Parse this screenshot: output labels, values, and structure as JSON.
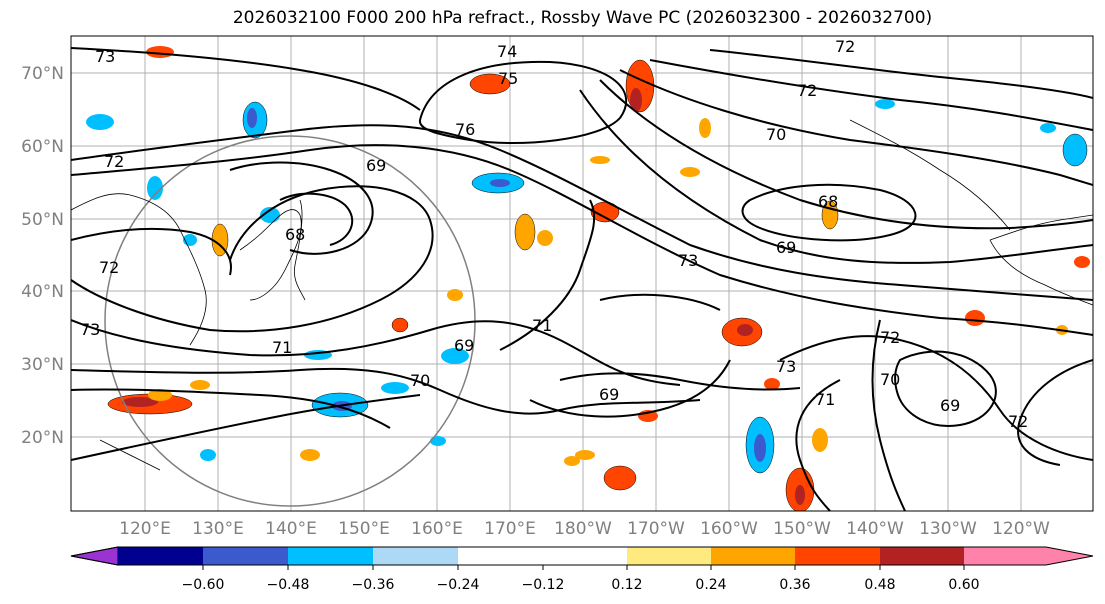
{
  "title": "2026032100 F000 200 hPa refract., Rossby Wave PC (2026032300 - 2026032700)",
  "map": {
    "lat_labels": [
      "70°N",
      "60°N",
      "50°N",
      "40°N",
      "30°N",
      "20°N"
    ],
    "lon_labels": [
      "120°E",
      "130°E",
      "140°E",
      "150°E",
      "160°E",
      "170°E",
      "180°W",
      "170°W",
      "160°W",
      "150°W",
      "140°W",
      "130°W",
      "120°W"
    ],
    "contour_labels": [
      "73",
      "74",
      "75",
      "72",
      "76",
      "70",
      "72",
      "68",
      "69",
      "69",
      "72",
      "73",
      "71",
      "71",
      "69",
      "70",
      "69",
      "73",
      "71",
      "72",
      "70",
      "69",
      "72",
      "68",
      "73",
      "72"
    ]
  },
  "colorbar": {
    "colors": [
      "#9b32d2",
      "#000090",
      "#3a5acd",
      "#00bfff",
      "#add8f6",
      "#ffffff",
      "#ffea80",
      "#ffa500",
      "#ff4500",
      "#b22222",
      "#ff82ab"
    ],
    "tick_labels": [
      "−0.60",
      "−0.48",
      "−0.36",
      "−0.24",
      "−0.12",
      "0.12",
      "0.24",
      "0.36",
      "0.48",
      "0.60"
    ]
  }
}
